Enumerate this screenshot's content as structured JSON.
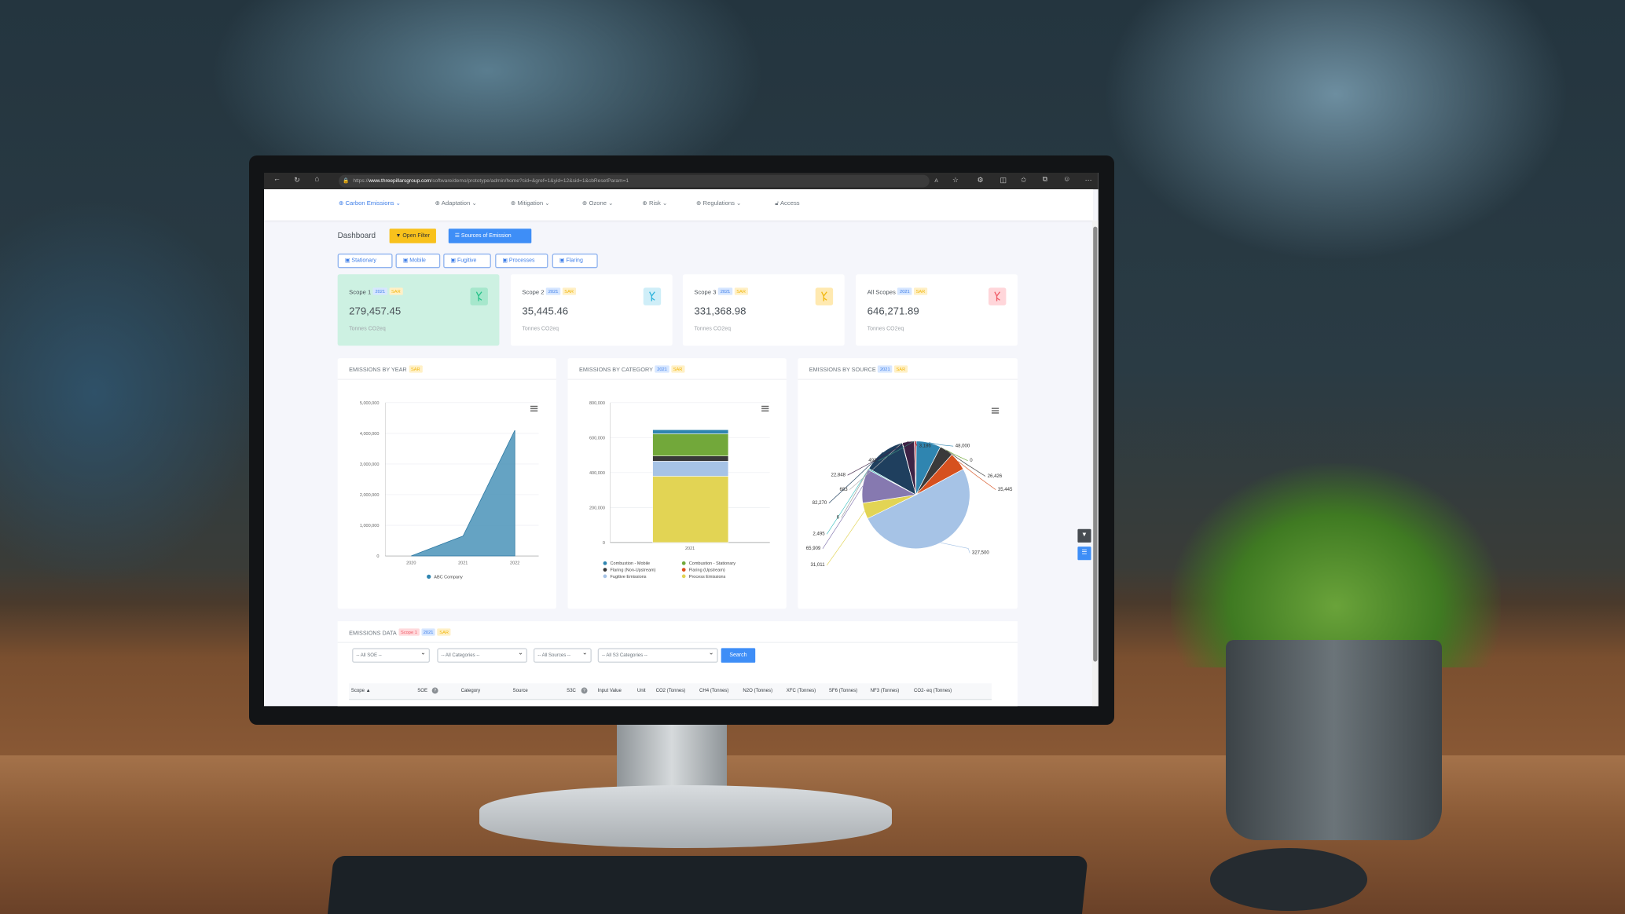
{
  "browser": {
    "url_prefix": "https://",
    "url_domain": "www.threepillarsgroup.com",
    "url_path": "/software/demo/prototype/admin/home?cid=&gref=1&yid=12&sid=1&cbResetParam=1"
  },
  "nav": {
    "items": [
      {
        "label": "Carbon Emissions ⌄"
      },
      {
        "label": "Adaptation ⌄"
      },
      {
        "label": "Mitigation ⌄"
      },
      {
        "label": "Ozone ⌄"
      },
      {
        "label": "Risk ⌄"
      },
      {
        "label": "Regulations ⌄"
      },
      {
        "label": "Access"
      }
    ]
  },
  "header": {
    "title": "Dashboard",
    "open_filter": "Open Filter",
    "sources": "Sources of Emission"
  },
  "tabs": [
    {
      "label": "Stationary"
    },
    {
      "label": "Mobile"
    },
    {
      "label": "Fugitive"
    },
    {
      "label": "Processes"
    },
    {
      "label": "Flaring"
    }
  ],
  "badges": {
    "year": "2021",
    "currency": "SAR",
    "scope": "Scope 1"
  },
  "cards": [
    {
      "label": "Scope 1",
      "value": "279,457.45",
      "unit": "Tonnes CO2eq",
      "color": "#28c38a",
      "bg": "#cdf1e2",
      "icon_bg": "#a6e7cc"
    },
    {
      "label": "Scope 2",
      "value": "35,445.46",
      "unit": "Tonnes CO2eq",
      "color": "#2fb4dc",
      "bg": "#ffffff",
      "icon_bg": "#cfeef8"
    },
    {
      "label": "Scope 3",
      "value": "331,368.98",
      "unit": "Tonnes CO2eq",
      "color": "#f1b70f",
      "bg": "#ffffff",
      "icon_bg": "#ffe9b0"
    },
    {
      "label": "All Scopes",
      "value": "646,271.89",
      "unit": "Tonnes CO2eq",
      "color": "#ef5a66",
      "bg": "#ffffff",
      "icon_bg": "#ffd6da"
    }
  ],
  "chart_data": [
    {
      "type": "area",
      "title": "EMISSIONS BY YEAR",
      "categories": [
        "2020",
        "2021",
        "2022"
      ],
      "series": [
        {
          "name": "ABC Company",
          "values": [
            0,
            650000,
            4100000
          ],
          "color": "#4a93b8"
        }
      ],
      "ylim": [
        0,
        5000000
      ],
      "yticks": [
        "0",
        "1,000,000",
        "2,000,000",
        "3,000,000",
        "4,000,000",
        "5,000,000"
      ],
      "grid": true,
      "legend": "bottom"
    },
    {
      "type": "bar",
      "stacked": true,
      "title": "EMISSIONS BY CATEGORY",
      "categories": [
        "2021"
      ],
      "ylim": [
        0,
        800000
      ],
      "yticks": [
        "0",
        "200,000",
        "400,000",
        "600,000",
        "800,000"
      ],
      "grid": true,
      "legend": "bottom",
      "series": [
        {
          "name": "Combustion - Mobile",
          "values": [
            23000
          ],
          "color": "#2f85b0"
        },
        {
          "name": "Combustion - Stationary",
          "values": [
            127000
          ],
          "color": "#72a83a"
        },
        {
          "name": "Flaring (Non-Upstream)",
          "values": [
            30000
          ],
          "color": "#383838"
        },
        {
          "name": "Flaring (Upstream)",
          "values": [
            0
          ],
          "color": "#e04e1c"
        },
        {
          "name": "Fugitive Emissions",
          "values": [
            86000
          ],
          "color": "#a6c3e6"
        },
        {
          "name": "Process Emissions",
          "values": [
            379000
          ],
          "color": "#e2d454"
        }
      ]
    },
    {
      "type": "pie",
      "title": "EMISSIONS BY SOURCE",
      "slices": [
        {
          "label": "48,000",
          "value": 48000,
          "color": "#2f85b0"
        },
        {
          "label": "0",
          "value": 0,
          "color": "#72a83a"
        },
        {
          "label": "26,426",
          "value": 26426,
          "color": "#3a3a3a"
        },
        {
          "label": "35,445",
          "value": 35445,
          "color": "#d6511f"
        },
        {
          "label": "327,500",
          "value": 327500,
          "color": "#a6c3e6"
        },
        {
          "label": "31,011",
          "value": 31011,
          "color": "#e2d454"
        },
        {
          "label": "65,909",
          "value": 65909,
          "color": "#8679b0"
        },
        {
          "label": "2,495",
          "value": 2495,
          "color": "#3cc0c0"
        },
        {
          "label": "6",
          "value": 6,
          "color": "#9a9a9a"
        },
        {
          "label": "82,270",
          "value": 82270,
          "color": "#1f3f5e"
        },
        {
          "label": "683",
          "value": 683,
          "color": "#b0b0b0"
        },
        {
          "label": "22,848",
          "value": 22848,
          "color": "#3d2245"
        },
        {
          "label": "492",
          "value": 492,
          "color": "#3a8a7a"
        },
        {
          "label": "3,186",
          "value": 3186,
          "color": "#b02a35"
        }
      ]
    }
  ],
  "emissions_data": {
    "title": "EMISSIONS DATA",
    "filters": [
      "-- All SOE --",
      "-- All Categories --",
      "-- All Sources --",
      "-- All S3 Categories --"
    ],
    "search": "Search",
    "columns": [
      "Scope ▲",
      "SOE",
      "Category",
      "Source",
      "S3C",
      "Input Value",
      "Unit",
      "CO2 (Tonnes)",
      "CH4 (Tonnes)",
      "N2O (Tonnes)",
      "XFC (Tonnes)",
      "SF6 (Tonnes)",
      "NF3 (Tonnes)",
      "CO2- eq (Tonnes)"
    ]
  },
  "colors": {
    "primary": "#3e8ef7",
    "warning": "#f8c11c",
    "dark": "#474c52"
  }
}
